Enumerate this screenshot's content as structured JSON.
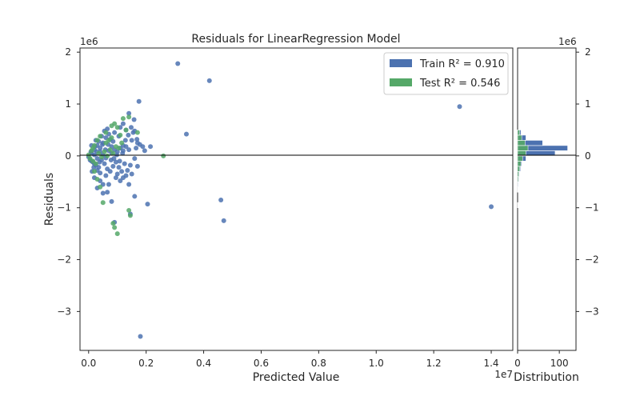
{
  "chart_data": {
    "type": "scatter",
    "title": "Residuals for LinearRegression Model",
    "xlabel": "Predicted Value",
    "ylabel": "Residuals",
    "x_exponent": "1e7",
    "y_exponent": "1e6",
    "xlim": [
      -0.03,
      1.475
    ],
    "ylim": [
      -3.75,
      2.08
    ],
    "x_ticks": [
      "0.0",
      "0.2",
      "0.4",
      "0.6",
      "0.8",
      "1.0",
      "1.2",
      "1.4"
    ],
    "y_ticks": [
      "−3",
      "−2",
      "−1",
      "0",
      "1",
      "2"
    ],
    "grid": false,
    "legend_position": "top-right",
    "series": [
      {
        "name": "Train",
        "legend_label": "Train R² = 0.910",
        "r2": 0.91,
        "color": "#4c72b0",
        "points": [
          [
            0.31,
            1.78
          ],
          [
            0.42,
            1.45
          ],
          [
            0.34,
            0.42
          ],
          [
            0.215,
            0.18
          ],
          [
            0.175,
            1.05
          ],
          [
            1.29,
            0.95
          ],
          [
            1.4,
            -0.98
          ],
          [
            0.47,
            -1.25
          ],
          [
            0.46,
            -0.85
          ],
          [
            0.18,
            -3.48
          ],
          [
            0.205,
            -0.93
          ],
          [
            0.16,
            -0.78
          ],
          [
            0.145,
            -1.12
          ],
          [
            0.09,
            -1.28
          ],
          [
            0.14,
            -0.55
          ],
          [
            0.08,
            -0.88
          ],
          [
            0.12,
            -0.42
          ],
          [
            0.1,
            -0.35
          ],
          [
            0.03,
            -0.62
          ],
          [
            0.05,
            -0.55
          ],
          [
            0.14,
            0.82
          ],
          [
            0.12,
            0.62
          ],
          [
            0.16,
            0.48
          ],
          [
            0.13,
            0.5
          ],
          [
            0.11,
            0.55
          ],
          [
            0.09,
            0.45
          ],
          [
            0.07,
            0.42
          ],
          [
            0.06,
            0.35
          ],
          [
            0.15,
            0.3
          ],
          [
            0.17,
            0.25
          ],
          [
            0.12,
            0.2
          ],
          [
            0.08,
            0.18
          ],
          [
            0.05,
            0.25
          ],
          [
            0.04,
            0.15
          ],
          [
            0.03,
            0.2
          ],
          [
            0.02,
            0.12
          ],
          [
            0.01,
            0.05
          ],
          [
            0.0,
            -0.02
          ],
          [
            0.005,
            -0.08
          ],
          [
            0.015,
            -0.12
          ],
          [
            0.025,
            -0.18
          ],
          [
            0.035,
            -0.22
          ],
          [
            0.045,
            -0.08
          ],
          [
            0.055,
            -0.15
          ],
          [
            0.065,
            -0.25
          ],
          [
            0.075,
            -0.3
          ],
          [
            0.085,
            -0.2
          ],
          [
            0.095,
            -0.12
          ],
          [
            0.105,
            -0.22
          ],
          [
            0.115,
            -0.3
          ],
          [
            0.125,
            -0.15
          ],
          [
            0.135,
            -0.28
          ],
          [
            0.145,
            -0.18
          ],
          [
            0.02,
            0.02
          ],
          [
            0.03,
            -0.05
          ],
          [
            0.04,
            0.08
          ],
          [
            0.05,
            0.02
          ],
          [
            0.06,
            -0.04
          ],
          [
            0.07,
            0.1
          ],
          [
            0.08,
            0.05
          ],
          [
            0.09,
            0.12
          ],
          [
            0.1,
            0.08
          ],
          [
            0.11,
            0.15
          ],
          [
            0.12,
            0.1
          ],
          [
            0.13,
            0.18
          ],
          [
            0.14,
            0.12
          ],
          [
            0.01,
            -0.1
          ],
          [
            0.02,
            -0.15
          ],
          [
            0.03,
            -0.28
          ],
          [
            0.04,
            -0.33
          ],
          [
            0.06,
            -0.38
          ],
          [
            0.025,
            0.3
          ],
          [
            0.035,
            0.28
          ],
          [
            0.045,
            0.38
          ],
          [
            0.055,
            0.48
          ],
          [
            0.065,
            0.52
          ],
          [
            0.075,
            0.32
          ],
          [
            0.105,
            0.38
          ],
          [
            0.085,
            0.28
          ],
          [
            0.155,
            0.45
          ],
          [
            0.165,
            0.15
          ],
          [
            0.095,
            -0.42
          ],
          [
            0.11,
            -0.48
          ],
          [
            0.065,
            -0.7
          ],
          [
            0.05,
            -0.72
          ],
          [
            0.012,
            -0.3
          ],
          [
            0.018,
            -0.22
          ],
          [
            0.008,
            0.08
          ],
          [
            0.022,
            0.18
          ],
          [
            0.028,
            0.08
          ],
          [
            0.038,
            -0.12
          ],
          [
            0.048,
            0.22
          ],
          [
            0.058,
            0.12
          ],
          [
            0.068,
            0.22
          ],
          [
            0.078,
            -0.08
          ],
          [
            0.088,
            -0.05
          ],
          [
            0.098,
            0.02
          ],
          [
            0.108,
            -0.1
          ],
          [
            0.118,
            0.05
          ],
          [
            0.128,
            0.3
          ],
          [
            0.138,
            0.4
          ],
          [
            0.148,
            0.55
          ],
          [
            0.158,
            0.7
          ],
          [
            0.168,
            0.32
          ],
          [
            0.178,
            0.22
          ],
          [
            0.188,
            0.18
          ],
          [
            0.195,
            0.1
          ],
          [
            0.16,
            -0.05
          ],
          [
            0.17,
            -0.2
          ],
          [
            0.15,
            -0.35
          ],
          [
            0.13,
            -0.38
          ],
          [
            0.07,
            -0.55
          ],
          [
            0.04,
            -0.48
          ],
          [
            0.02,
            -0.42
          ],
          [
            0.01,
            0.2
          ]
        ]
      },
      {
        "name": "Test",
        "legend_label": "Test R² = 0.546",
        "r2": 0.546,
        "color": "#55a868",
        "points": [
          [
            0.26,
            0.0
          ],
          [
            0.17,
            0.45
          ],
          [
            0.14,
            0.75
          ],
          [
            0.12,
            0.72
          ],
          [
            0.09,
            0.62
          ],
          [
            0.08,
            0.58
          ],
          [
            0.1,
            0.55
          ],
          [
            0.06,
            0.45
          ],
          [
            0.04,
            0.38
          ],
          [
            0.03,
            0.3
          ],
          [
            0.02,
            0.2
          ],
          [
            0.01,
            0.1
          ],
          [
            0.0,
            0.02
          ],
          [
            0.005,
            -0.05
          ],
          [
            0.015,
            -0.1
          ],
          [
            0.025,
            -0.15
          ],
          [
            0.035,
            0.05
          ],
          [
            0.045,
            -0.02
          ],
          [
            0.055,
            0.08
          ],
          [
            0.065,
            0.0
          ],
          [
            0.075,
            0.12
          ],
          [
            0.085,
            0.05
          ],
          [
            0.095,
            0.18
          ],
          [
            0.105,
            0.15
          ],
          [
            0.115,
            0.25
          ],
          [
            0.02,
            -0.3
          ],
          [
            0.03,
            -0.45
          ],
          [
            0.04,
            -0.6
          ],
          [
            0.05,
            -0.9
          ],
          [
            0.09,
            -1.38
          ],
          [
            0.1,
            -1.5
          ],
          [
            0.085,
            -1.3
          ],
          [
            0.14,
            -1.05
          ],
          [
            0.145,
            -1.15
          ],
          [
            0.06,
            0.25
          ],
          [
            0.07,
            0.3
          ],
          [
            0.08,
            0.35
          ],
          [
            0.11,
            0.4
          ],
          [
            0.13,
            0.5
          ],
          [
            0.015,
            0.15
          ]
        ]
      }
    ],
    "distribution": {
      "xlabel": "Distribution",
      "x_ticks": [
        "0",
        "100"
      ],
      "xlim": [
        0,
        140
      ],
      "bin_edges": [
        -1.0,
        -0.9,
        -0.8,
        -0.7,
        -0.6,
        -0.5,
        -0.4,
        -0.3,
        -0.2,
        -0.1,
        0.0,
        0.1,
        0.2,
        0.3,
        0.4,
        0.5
      ],
      "train_counts": [
        1,
        0,
        0,
        1,
        2,
        3,
        4,
        7,
        10,
        20,
        90,
        120,
        60,
        20,
        8
      ],
      "test_counts": [
        0,
        0,
        0,
        1,
        1,
        2,
        3,
        5,
        8,
        12,
        20,
        25,
        18,
        10,
        5
      ]
    }
  }
}
